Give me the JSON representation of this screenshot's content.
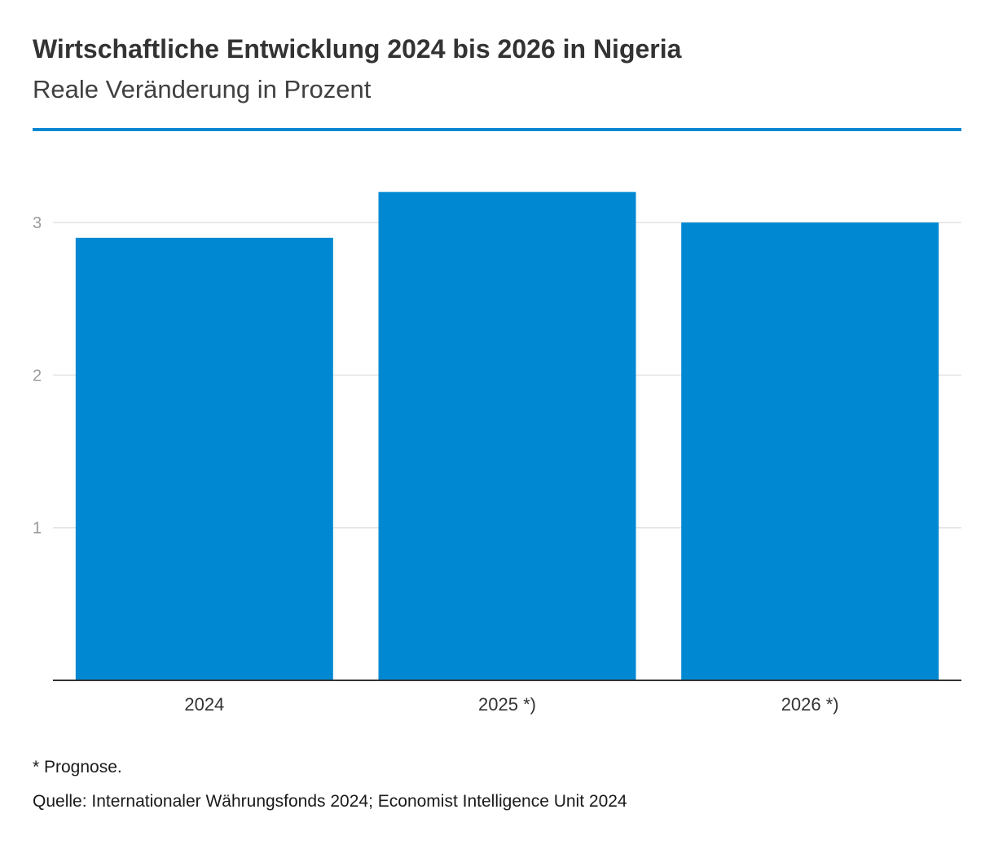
{
  "chart_data": {
    "type": "bar",
    "title": "Wirtschaftliche Entwicklung 2024 bis 2026 in Nigeria",
    "subtitle": "Reale Veränderung in Prozent",
    "categories": [
      "2024",
      "2025 *)",
      "2026 *)"
    ],
    "values": [
      2.9,
      3.2,
      3.0
    ],
    "xlabel": "",
    "ylabel": "",
    "ylim": [
      0,
      3.2
    ],
    "yticks": [
      "1",
      "2",
      "3"
    ],
    "grid": true,
    "legend": "none",
    "colors": {
      "bar": "#0089d2",
      "accent_rule": "#0089d2",
      "gridline": "#e3e3e3",
      "axis": "#333333",
      "tick_label": "#9a9a9a"
    },
    "footnote": "* Prognose.",
    "source": "Quelle: Internationaler Währungsfonds 2024; Economist Intelligence Unit 2024"
  }
}
